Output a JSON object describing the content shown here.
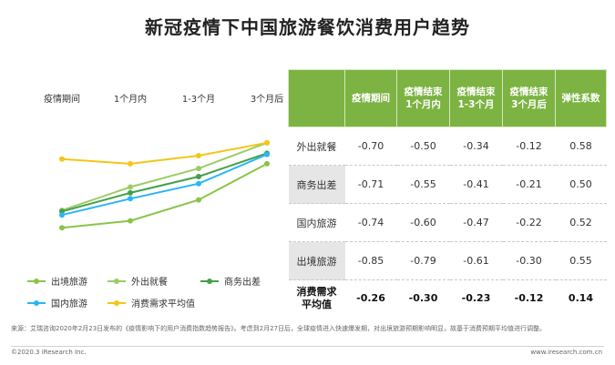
{
  "page": {
    "title": "新冠疫情下中国旅游餐饮消费用户趋势",
    "source_note": "来源：艾瑞咨询2020年2月23日发布的《疫情影响下的用户消费指数趋势报告》。考虑到2月27日后，全球疫情进入快速爆发期，对出境旅游预期影响明显，故基于消费预期平均值进行调整。",
    "copyright": "©2020.3 iResearch Inc.",
    "website": "www.iresearch.com.cn"
  },
  "chart_data": {
    "type": "line",
    "x": [
      "疫情期间",
      "1个月内",
      "1-3个月",
      "3个月后"
    ],
    "ylim": [
      -0.95,
      -0.05
    ],
    "grid": false,
    "legend_position": "bottom",
    "series": [
      {
        "name": "出境旅游",
        "values": [
          -0.85,
          -0.79,
          -0.61,
          -0.3
        ],
        "color": "#8bc34a"
      },
      {
        "name": "外出就餐",
        "values": [
          -0.7,
          -0.5,
          -0.34,
          -0.12
        ],
        "color": "#9ccc65"
      },
      {
        "name": "商务出差",
        "values": [
          -0.71,
          -0.55,
          -0.41,
          -0.21
        ],
        "color": "#43a047"
      },
      {
        "name": "国内旅游",
        "values": [
          -0.74,
          -0.6,
          -0.47,
          -0.22
        ],
        "color": "#29b6f6"
      },
      {
        "name": "消费需求平均值",
        "values": [
          -0.26,
          -0.3,
          -0.23,
          -0.12
        ],
        "color": "#f5c518"
      }
    ]
  },
  "table": {
    "headers": [
      "",
      "疫情期间",
      "疫情结束\n1个月内",
      "疫情结束\n1-3个月",
      "疫情结束\n3个月后",
      "弹性系数"
    ],
    "rows": [
      {
        "label": "外出就餐",
        "values": [
          "-0.70",
          "-0.50",
          "-0.34",
          "-0.12",
          "0.58"
        ]
      },
      {
        "label": "商务出差",
        "values": [
          "-0.71",
          "-0.55",
          "-0.41",
          "-0.21",
          "0.50"
        ]
      },
      {
        "label": "国内旅游",
        "values": [
          "-0.74",
          "-0.60",
          "-0.47",
          "-0.22",
          "0.52"
        ]
      },
      {
        "label": "出境旅游",
        "values": [
          "-0.85",
          "-0.79",
          "-0.61",
          "-0.30",
          "0.55"
        ]
      },
      {
        "label": "消费需求\n平均值",
        "values": [
          "-0.26",
          "-0.30",
          "-0.23",
          "-0.12",
          "0.14"
        ]
      }
    ]
  }
}
